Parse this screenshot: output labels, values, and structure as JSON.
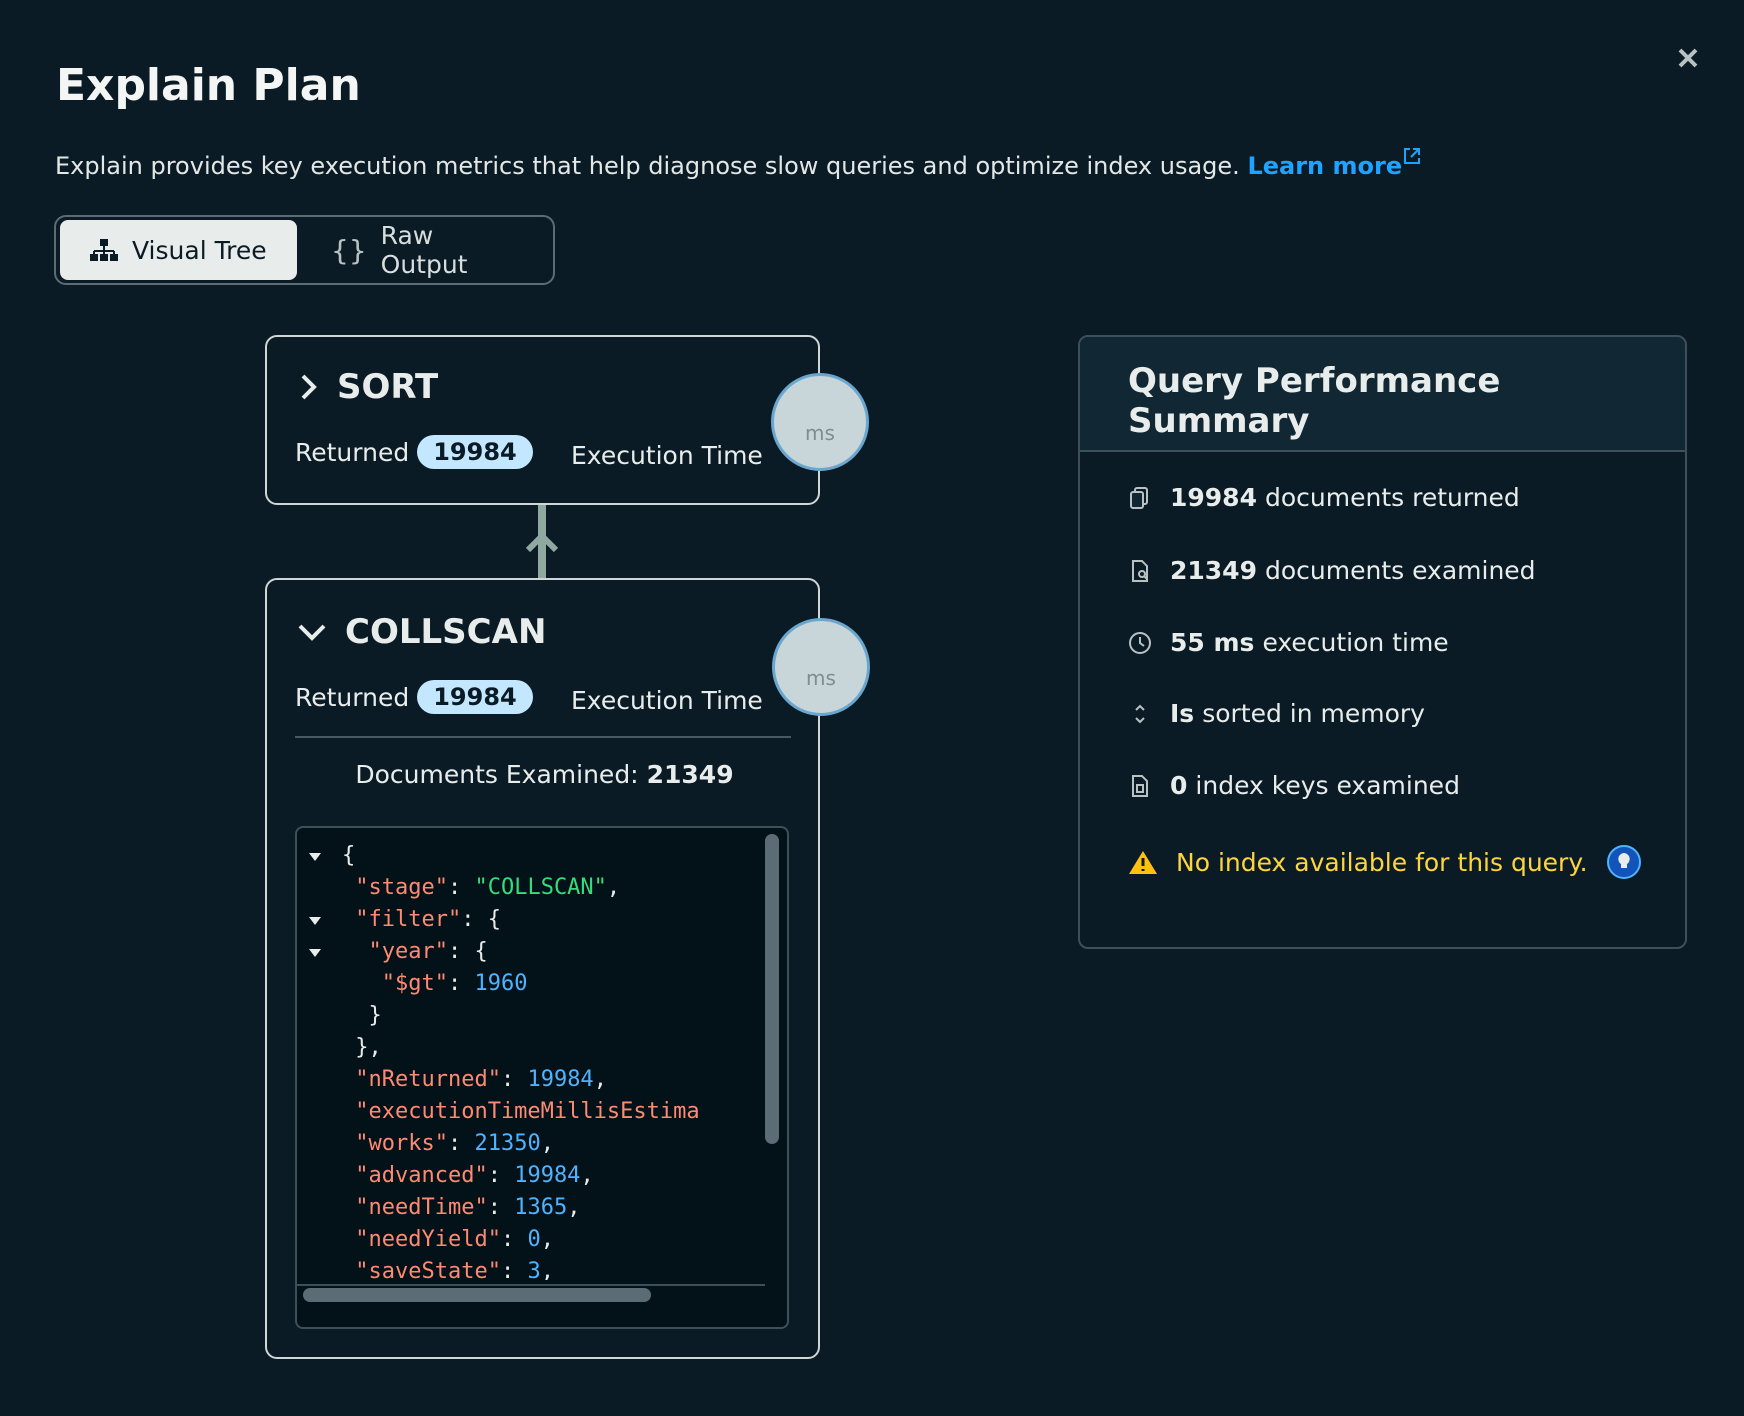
{
  "header": {
    "title": "Explain Plan",
    "description": "Explain provides key execution metrics that help diagnose slow queries and optimize index usage.",
    "link": "Learn more"
  },
  "tabs": [
    "Visual Tree",
    "Raw Output"
  ],
  "stages": [
    {
      "title": "SORT",
      "returned_label": "Returned",
      "returned": 19984,
      "exec_label": "Execution Time",
      "unit": "ms"
    },
    {
      "title": "COLLSCAN",
      "returned_label": "Returned",
      "returned": 19984,
      "exec_label": "Execution Time",
      "unit": "ms",
      "examined_label": "Documents Examined:",
      "examined": 21349
    }
  ],
  "code": [
    {
      "toggle": true,
      "tokens": [
        {
          "text": "{",
          "color": "#e8edeb"
        }
      ]
    },
    {
      "toggle": false,
      "tokens": [
        {
          "text": " \"stage\"",
          "color": "#ff8a72"
        },
        {
          "text": ": ",
          "color": "#e8edeb"
        },
        {
          "text": "\"COLLSCAN\"",
          "color": "#35de7b"
        },
        {
          "text": ",",
          "color": "#e8edeb"
        }
      ]
    },
    {
      "toggle": true,
      "tokens": [
        {
          "text": " \"filter\"",
          "color": "#ff8a72"
        },
        {
          "text": ": {",
          "color": "#e8edeb"
        }
      ]
    },
    {
      "toggle": true,
      "tokens": [
        {
          "text": "  \"year\"",
          "color": "#ff8a72"
        },
        {
          "text": ": {",
          "color": "#e8edeb"
        }
      ]
    },
    {
      "toggle": false,
      "tokens": [
        {
          "text": "   \"$gt\"",
          "color": "#ff8a72"
        },
        {
          "text": ": ",
          "color": "#e8edeb"
        },
        {
          "text": 1960,
          "color": "#4fb3ff"
        }
      ]
    },
    {
      "toggle": false,
      "tokens": [
        {
          "text": "  }",
          "color": "#e8edeb"
        }
      ]
    },
    {
      "toggle": false,
      "tokens": [
        {
          "text": " },",
          "color": "#e8edeb"
        }
      ]
    },
    {
      "toggle": false,
      "tokens": [
        {
          "text": " \"nReturned\"",
          "color": "#ff8a72"
        },
        {
          "text": ": ",
          "color": "#e8edeb"
        },
        {
          "text": 19984,
          "color": "#4fb3ff"
        },
        {
          "text": ",",
          "color": "#e8edeb"
        }
      ]
    },
    {
      "toggle": false,
      "tokens": [
        {
          "text": " \"executionTimeMillisEstima",
          "color": "#ff8a72"
        }
      ]
    },
    {
      "toggle": false,
      "tokens": [
        {
          "text": " \"works\"",
          "color": "#ff8a72"
        },
        {
          "text": ": ",
          "color": "#e8edeb"
        },
        {
          "text": 21350,
          "color": "#4fb3ff"
        },
        {
          "text": ",",
          "color": "#e8edeb"
        }
      ]
    },
    {
      "toggle": false,
      "tokens": [
        {
          "text": " \"advanced\"",
          "color": "#ff8a72"
        },
        {
          "text": ": ",
          "color": "#e8edeb"
        },
        {
          "text": 19984,
          "color": "#4fb3ff"
        },
        {
          "text": ",",
          "color": "#e8edeb"
        }
      ]
    },
    {
      "toggle": false,
      "tokens": [
        {
          "text": " \"needTime\"",
          "color": "#ff8a72"
        },
        {
          "text": ": ",
          "color": "#e8edeb"
        },
        {
          "text": 1365,
          "color": "#4fb3ff"
        },
        {
          "text": ",",
          "color": "#e8edeb"
        }
      ]
    },
    {
      "toggle": false,
      "tokens": [
        {
          "text": " \"needYield\"",
          "color": "#ff8a72"
        },
        {
          "text": ": ",
          "color": "#e8edeb"
        },
        {
          "text": 0,
          "color": "#4fb3ff"
        },
        {
          "text": ",",
          "color": "#e8edeb"
        }
      ]
    },
    {
      "toggle": false,
      "tokens": [
        {
          "text": " \"saveState\"",
          "color": "#ff8a72"
        },
        {
          "text": ": ",
          "color": "#e8edeb"
        },
        {
          "text": 3,
          "color": "#4fb3ff"
        },
        {
          "text": ",",
          "color": "#e8edeb"
        }
      ]
    }
  ],
  "summary": {
    "title": "Query Performance Summary",
    "rows": [
      {
        "bold": "19984",
        "text": "documents returned"
      },
      {
        "bold": "21349",
        "text": "documents examined"
      },
      {
        "bold": "55 ms",
        "text": "execution time"
      },
      {
        "bold": "Is",
        "text": "sorted in memory"
      },
      {
        "bold": "0",
        "text": "index keys examined"
      }
    ],
    "warning": "No index available for this query."
  }
}
